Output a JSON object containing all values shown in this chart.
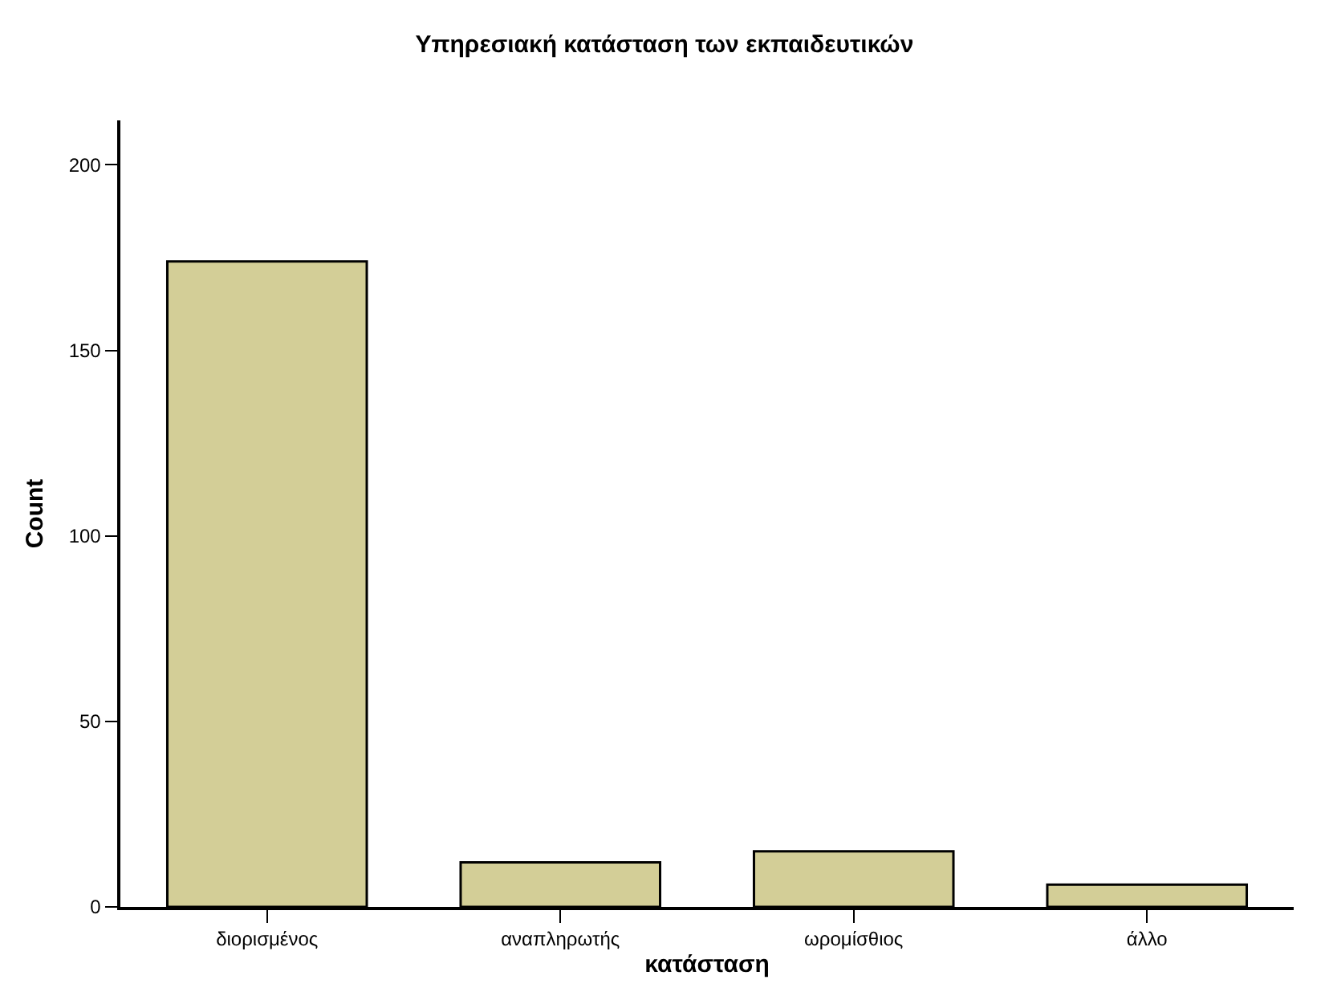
{
  "chart_data": {
    "type": "bar",
    "title": "Υπηρεσιακή κατάσταση των εκπαιδευτικών",
    "xlabel": "κατάσταση",
    "ylabel": "Count",
    "categories": [
      "διορισμένος",
      "αναπληρωτής",
      "ωρομίσθιος",
      "άλλο"
    ],
    "values": [
      174,
      12,
      15,
      6
    ],
    "color": "#d3ce97",
    "ylim": [
      0,
      212
    ],
    "yticks": [
      0,
      50,
      100,
      150,
      200
    ],
    "grid": false,
    "legend": false
  }
}
